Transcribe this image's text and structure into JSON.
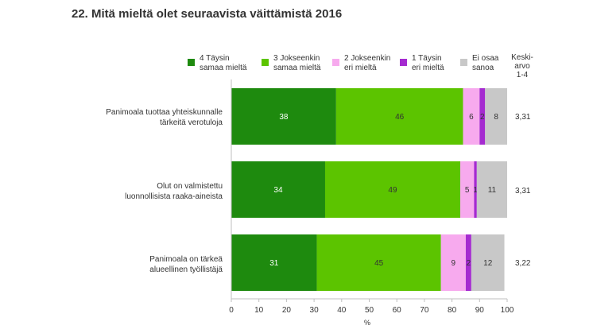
{
  "chart_data": {
    "type": "bar",
    "orientation": "horizontal",
    "stacked": true,
    "title": "22. Mitä mieltä olet seuraavista väittämistä 2016",
    "categories": [
      "Panimoala tuottaa yhteiskunnalle\ntärkeitä verotuloja",
      "Olut on valmistettu\nluonnollisista raaka-aineista",
      "Panimoala on tärkeä\nalueellinen työllistäjä"
    ],
    "series": [
      {
        "name": "4 Täysin\nsamaa mieltä",
        "color": "#1e8a0e",
        "values": [
          38,
          34,
          31
        ]
      },
      {
        "name": "3 Jokseenkin\nsamaa mieltä",
        "color": "#5cc400",
        "values": [
          46,
          49,
          45
        ]
      },
      {
        "name": "2 Jokseenkin\neri mieltä",
        "color": "#f7aaee",
        "values": [
          6,
          5,
          9
        ]
      },
      {
        "name": "1 Täysin\neri mieltä",
        "color": "#a52bd0",
        "values": [
          2,
          1,
          2
        ]
      },
      {
        "name": "Ei osaa\nsanoa",
        "color": "#c8c8c8",
        "values": [
          8,
          11,
          12
        ]
      }
    ],
    "xlabel": "%",
    "xlim": [
      0,
      100
    ],
    "xticks": [
      0,
      10,
      20,
      30,
      40,
      50,
      60,
      70,
      80,
      90,
      100
    ],
    "grid": false,
    "legend": "top",
    "avg_header": "Keski-\narvo\n1-4",
    "averages": [
      "3,31",
      "3,31",
      "3,22"
    ]
  }
}
